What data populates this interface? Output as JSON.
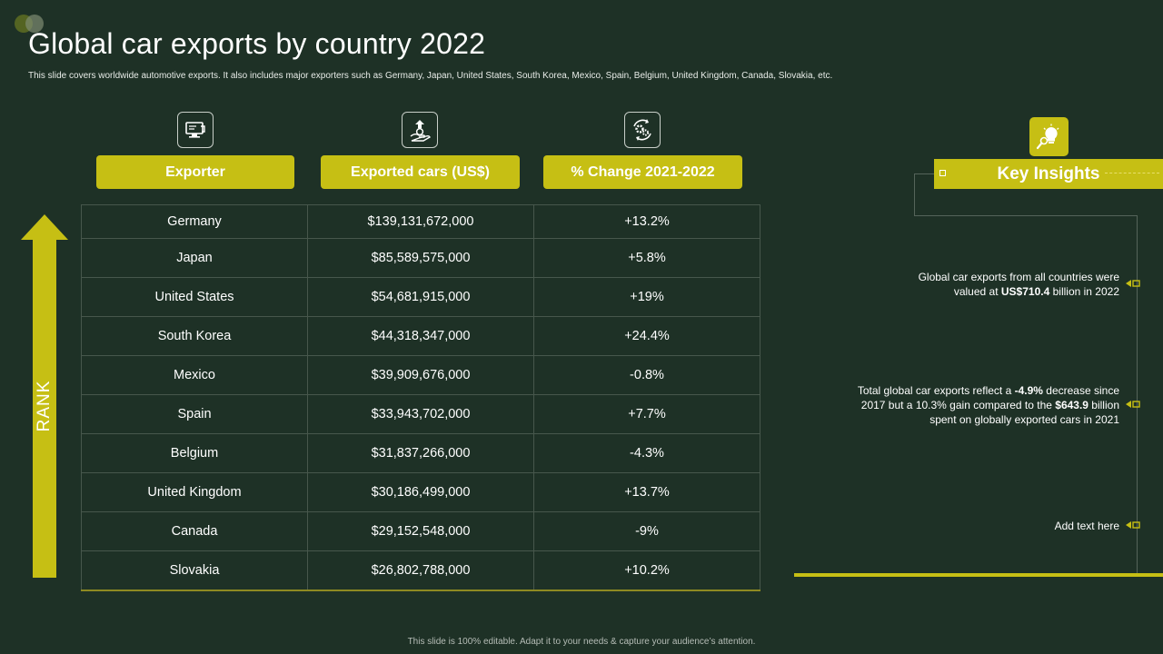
{
  "slide": {
    "title": "Global car exports by country 2022",
    "subtitle": "This slide covers worldwide automotive exports. It also includes major exporters such as Germany, Japan, United States, South Korea, Mexico, Spain, Belgium, United Kingdom, Canada, Slovakia, etc.",
    "footer": "This slide is 100% editable.  Adapt it to your needs & capture your audience’s attention."
  },
  "table": {
    "columns": [
      {
        "label": "Exporter",
        "icon": "monitor-icon"
      },
      {
        "label": "Exported cars (US$)",
        "icon": "money-upload-icon"
      },
      {
        "label": "% Change 2021-2022",
        "icon": "gears-cycle-icon"
      }
    ],
    "rank_label": "RANK",
    "rows": [
      {
        "exporter": "Germany",
        "value": "$139,131,672,000",
        "change": "+13.2%"
      },
      {
        "exporter": "Japan",
        "value": "$85,589,575,000",
        "change": "+5.8%"
      },
      {
        "exporter": "United States",
        "value": "$54,681,915,000",
        "change": "+19%"
      },
      {
        "exporter": "South Korea",
        "value": "$44,318,347,000",
        "change": "+24.4%"
      },
      {
        "exporter": "Mexico",
        "value": "$39,909,676,000",
        "change": "-0.8%"
      },
      {
        "exporter": "Spain",
        "value": "$33,943,702,000",
        "change": "+7.7%"
      },
      {
        "exporter": "Belgium",
        "value": "$31,837,266,000",
        "change": "-4.3%"
      },
      {
        "exporter": "United Kingdom",
        "value": "$30,186,499,000",
        "change": "+13.7%"
      },
      {
        "exporter": "Canada",
        "value": "$29,152,548,000",
        "change": "-9%"
      },
      {
        "exporter": "Slovakia",
        "value": "$26,802,788,000",
        "change": "+10.2%"
      }
    ]
  },
  "insights": {
    "heading": "Key Insights",
    "icon": "lightbulb-search-icon",
    "item1": {
      "line1": "Global car exports from all countries were",
      "line2_pre": "valued  at ",
      "line2_bold": "US$710.4",
      "line2_post": "  billion in 2022"
    },
    "item2": {
      "line1_pre": "Total global car exports reflect a ",
      "line1_bold": "-4.9%",
      "line1_post": "  decrease since",
      "line2_pre": "2017 but a 10.3% gain compared to the ",
      "line2_bold": "$643.9",
      "line2_post": " billion",
      "line3": "spent on globally exported cars in 2021"
    },
    "item3": "Add text here"
  },
  "colors": {
    "background": "#1e3126",
    "accent": "#c6bf14",
    "grid": "#47574c"
  }
}
